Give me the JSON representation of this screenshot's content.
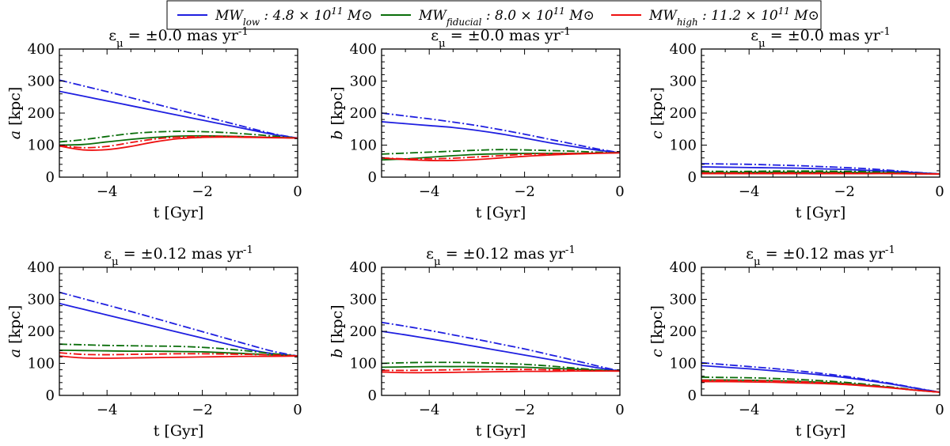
{
  "legend": [
    {
      "text": "MW_low : 4.8 × 10^11 M⊙",
      "color": "#1f1fe0"
    },
    {
      "text": "MW_fiducial : 8.0 × 10^11 M⊙",
      "color": "#0a6e0a"
    },
    {
      "text": "MW_high : 11.2 × 10^11 M⊙",
      "color": "#ee1111"
    }
  ],
  "chart_data": [
    {
      "type": "line",
      "title": "ε_μ = ±0.0 mas yr^-1",
      "xlabel": "t [Gyr]",
      "ylabel": "a [kpc]",
      "xlim": [
        -5,
        0
      ],
      "ylim": [
        0,
        400
      ],
      "xticks": [
        -4,
        -2,
        0
      ],
      "yticks": [
        0,
        100,
        200,
        300,
        400
      ],
      "x": [
        -5,
        -4.5,
        -4,
        -3.5,
        -3,
        -2.5,
        -2,
        -1.5,
        -1,
        -0.5,
        0
      ],
      "series": [
        {
          "name": "MW_low",
          "style": "solid",
          "color": "#1f1fe0",
          "values": [
            268,
            253,
            238,
            223,
            208,
            193,
            178,
            163,
            148,
            133,
            122
          ]
        },
        {
          "name": "MW_low",
          "style": "dashdot",
          "color": "#1f1fe0",
          "values": [
            303,
            285,
            267,
            248,
            229,
            210,
            191,
            172,
            153,
            135,
            122
          ]
        },
        {
          "name": "MW_fiducial",
          "style": "solid",
          "color": "#0a6e0a",
          "values": [
            100,
            102,
            110,
            118,
            124,
            128,
            129,
            128,
            126,
            124,
            122
          ]
        },
        {
          "name": "MW_fiducial",
          "style": "dashdot",
          "color": "#0a6e0a",
          "values": [
            110,
            117,
            127,
            136,
            141,
            143,
            142,
            139,
            134,
            128,
            122
          ]
        },
        {
          "name": "MW_high",
          "style": "solid",
          "color": "#ee1111",
          "values": [
            97,
            85,
            86,
            96,
            110,
            120,
            124,
            125,
            124,
            123,
            122
          ]
        },
        {
          "name": "MW_high",
          "style": "dashdot",
          "color": "#ee1111",
          "values": [
            99,
            92,
            96,
            108,
            119,
            125,
            127,
            127,
            126,
            124,
            122
          ]
        }
      ]
    },
    {
      "type": "line",
      "title": "ε_μ = ±0.0 mas yr^-1",
      "xlabel": "t [Gyr]",
      "ylabel": "b [kpc]",
      "xlim": [
        -5,
        0
      ],
      "ylim": [
        0,
        400
      ],
      "xticks": [
        -4,
        -2,
        0
      ],
      "yticks": [
        0,
        100,
        200,
        300,
        400
      ],
      "x": [
        -5,
        -4.5,
        -4,
        -3.5,
        -3,
        -2.5,
        -2,
        -1.5,
        -1,
        -0.5,
        0
      ],
      "series": [
        {
          "name": "MW_low",
          "style": "solid",
          "color": "#1f1fe0",
          "values": [
            173,
            167,
            161,
            155,
            146,
            135,
            122,
            108,
            96,
            85,
            76
          ]
        },
        {
          "name": "MW_low",
          "style": "dashdot",
          "color": "#1f1fe0",
          "values": [
            200,
            191,
            182,
            172,
            161,
            148,
            134,
            119,
            104,
            89,
            76
          ]
        },
        {
          "name": "MW_fiducial",
          "style": "solid",
          "color": "#0a6e0a",
          "values": [
            54,
            57,
            62,
            67,
            71,
            73,
            74,
            74,
            74,
            75,
            76
          ]
        },
        {
          "name": "MW_fiducial",
          "style": "dashdot",
          "color": "#0a6e0a",
          "values": [
            72,
            75,
            78,
            81,
            84,
            86,
            85,
            83,
            81,
            78,
            76
          ]
        },
        {
          "name": "MW_high",
          "style": "solid",
          "color": "#ee1111",
          "values": [
            60,
            55,
            52,
            52,
            55,
            60,
            65,
            69,
            72,
            74,
            76
          ]
        },
        {
          "name": "MW_high",
          "style": "dashdot",
          "color": "#ee1111",
          "values": [
            60,
            57,
            57,
            59,
            63,
            67,
            71,
            73,
            74,
            75,
            76
          ]
        }
      ]
    },
    {
      "type": "line",
      "title": "ε_μ = ±0.0 mas yr^-1",
      "xlabel": "t [Gyr]",
      "ylabel": "c [kpc]",
      "xlim": [
        -5,
        0
      ],
      "ylim": [
        0,
        400
      ],
      "xticks": [
        -4,
        -2,
        0
      ],
      "yticks": [
        0,
        100,
        200,
        300,
        400
      ],
      "x": [
        -5,
        -4.5,
        -4,
        -3.5,
        -3,
        -2.5,
        -2,
        -1.5,
        -1,
        -0.5,
        0
      ],
      "series": [
        {
          "name": "MW_low",
          "style": "solid",
          "color": "#1f1fe0",
          "values": [
            32,
            31,
            30,
            29,
            28,
            26,
            24,
            21,
            18,
            14,
            10
          ]
        },
        {
          "name": "MW_low",
          "style": "dashdot",
          "color": "#1f1fe0",
          "values": [
            42,
            41,
            40,
            38,
            36,
            33,
            30,
            26,
            21,
            15,
            10
          ]
        },
        {
          "name": "MW_fiducial",
          "style": "solid",
          "color": "#0a6e0a",
          "values": [
            14,
            14,
            15,
            15,
            15,
            15,
            15,
            14,
            13,
            11,
            10
          ]
        },
        {
          "name": "MW_fiducial",
          "style": "dashdot",
          "color": "#0a6e0a",
          "values": [
            18,
            18,
            18,
            19,
            19,
            19,
            18,
            17,
            15,
            12,
            10
          ]
        },
        {
          "name": "MW_high",
          "style": "solid",
          "color": "#ee1111",
          "values": [
            11,
            11,
            11,
            11,
            11,
            11,
            11,
            11,
            11,
            10,
            10
          ]
        },
        {
          "name": "MW_high",
          "style": "dashdot",
          "color": "#ee1111",
          "values": [
            13,
            13,
            13,
            13,
            13,
            13,
            13,
            12,
            12,
            11,
            10
          ]
        }
      ]
    },
    {
      "type": "line",
      "title": "ε_μ = ±0.12 mas yr^-1",
      "xlabel": "t [Gyr]",
      "ylabel": "a [kpc]",
      "xlim": [
        -5,
        0
      ],
      "ylim": [
        0,
        400
      ],
      "xticks": [
        -4,
        -2,
        0
      ],
      "yticks": [
        0,
        100,
        200,
        300,
        400
      ],
      "x": [
        -5,
        -4.5,
        -4,
        -3.5,
        -3,
        -2.5,
        -2,
        -1.5,
        -1,
        -0.5,
        0
      ],
      "series": [
        {
          "name": "MW_low",
          "style": "solid",
          "color": "#1f1fe0",
          "values": [
            287,
            269,
            251,
            233,
            215,
            197,
            179,
            161,
            143,
            130,
            123
          ]
        },
        {
          "name": "MW_low",
          "style": "dashdot",
          "color": "#1f1fe0",
          "values": [
            322,
            302,
            282,
            262,
            241,
            220,
            199,
            178,
            157,
            137,
            123
          ]
        },
        {
          "name": "MW_fiducial",
          "style": "solid",
          "color": "#0a6e0a",
          "values": [
            141,
            140,
            139,
            138,
            138,
            137,
            136,
            133,
            130,
            126,
            123
          ]
        },
        {
          "name": "MW_fiducial",
          "style": "dashdot",
          "color": "#0a6e0a",
          "values": [
            160,
            158,
            156,
            155,
            154,
            153,
            150,
            145,
            138,
            130,
            123
          ]
        },
        {
          "name": "MW_high",
          "style": "solid",
          "color": "#ee1111",
          "values": [
            123,
            117,
            116,
            117,
            118,
            119,
            120,
            121,
            122,
            122,
            123
          ]
        },
        {
          "name": "MW_high",
          "style": "dashdot",
          "color": "#ee1111",
          "values": [
            133,
            128,
            127,
            128,
            129,
            130,
            130,
            129,
            128,
            126,
            123
          ]
        }
      ]
    },
    {
      "type": "line",
      "title": "ε_μ = ±0.12 mas yr^-1",
      "xlabel": "t [Gyr]",
      "ylabel": "b [kpc]",
      "xlim": [
        -5,
        0
      ],
      "ylim": [
        0,
        400
      ],
      "xticks": [
        -4,
        -2,
        0
      ],
      "yticks": [
        0,
        100,
        200,
        300,
        400
      ],
      "x": [
        -5,
        -4.5,
        -4,
        -3.5,
        -3,
        -2.5,
        -2,
        -1.5,
        -1,
        -0.5,
        0
      ],
      "series": [
        {
          "name": "MW_low",
          "style": "solid",
          "color": "#1f1fe0",
          "values": [
            200,
            189,
            177,
            165,
            152,
            139,
            126,
            113,
            100,
            87,
            76
          ]
        },
        {
          "name": "MW_low",
          "style": "dashdot",
          "color": "#1f1fe0",
          "values": [
            228,
            216,
            203,
            189,
            175,
            160,
            145,
            128,
            111,
            93,
            76
          ]
        },
        {
          "name": "MW_fiducial",
          "style": "solid",
          "color": "#0a6e0a",
          "values": [
            88,
            89,
            90,
            90,
            90,
            89,
            88,
            85,
            82,
            79,
            76
          ]
        },
        {
          "name": "MW_fiducial",
          "style": "dashdot",
          "color": "#0a6e0a",
          "values": [
            100,
            102,
            103,
            103,
            102,
            100,
            97,
            92,
            86,
            80,
            76
          ]
        },
        {
          "name": "MW_high",
          "style": "solid",
          "color": "#ee1111",
          "values": [
            73,
            71,
            71,
            72,
            73,
            74,
            75,
            75,
            76,
            76,
            76
          ]
        },
        {
          "name": "MW_high",
          "style": "dashdot",
          "color": "#ee1111",
          "values": [
            78,
            78,
            79,
            80,
            81,
            81,
            81,
            80,
            79,
            77,
            76
          ]
        }
      ]
    },
    {
      "type": "line",
      "title": "ε_μ = ±0.12 mas yr^-1",
      "xlabel": "t [Gyr]",
      "ylabel": "c [kpc]",
      "xlim": [
        -5,
        0
      ],
      "ylim": [
        0,
        400
      ],
      "xticks": [
        -4,
        -2,
        0
      ],
      "yticks": [
        0,
        100,
        200,
        300,
        400
      ],
      "x": [
        -5,
        -4.5,
        -4,
        -3.5,
        -3,
        -2.5,
        -2,
        -1.5,
        -1,
        -0.5,
        0
      ],
      "series": [
        {
          "name": "MW_low",
          "style": "solid",
          "color": "#1f1fe0",
          "values": [
            93,
            88,
            83,
            77,
            71,
            64,
            56,
            46,
            35,
            22,
            10
          ]
        },
        {
          "name": "MW_low",
          "style": "dashdot",
          "color": "#1f1fe0",
          "values": [
            102,
            96,
            90,
            84,
            77,
            69,
            60,
            49,
            37,
            23,
            10
          ]
        },
        {
          "name": "MW_fiducial",
          "style": "solid",
          "color": "#0a6e0a",
          "values": [
            48,
            48,
            47,
            46,
            44,
            41,
            37,
            31,
            24,
            16,
            10
          ]
        },
        {
          "name": "MW_fiducial",
          "style": "dashdot",
          "color": "#0a6e0a",
          "values": [
            57,
            56,
            55,
            53,
            50,
            46,
            41,
            34,
            26,
            17,
            10
          ]
        },
        {
          "name": "MW_high",
          "style": "solid",
          "color": "#ee1111",
          "values": [
            43,
            43,
            42,
            41,
            39,
            37,
            34,
            29,
            23,
            16,
            10
          ]
        },
        {
          "name": "MW_high",
          "style": "dashdot",
          "color": "#ee1111",
          "values": [
            47,
            47,
            46,
            45,
            43,
            40,
            36,
            31,
            24,
            16,
            10
          ]
        }
      ]
    }
  ]
}
